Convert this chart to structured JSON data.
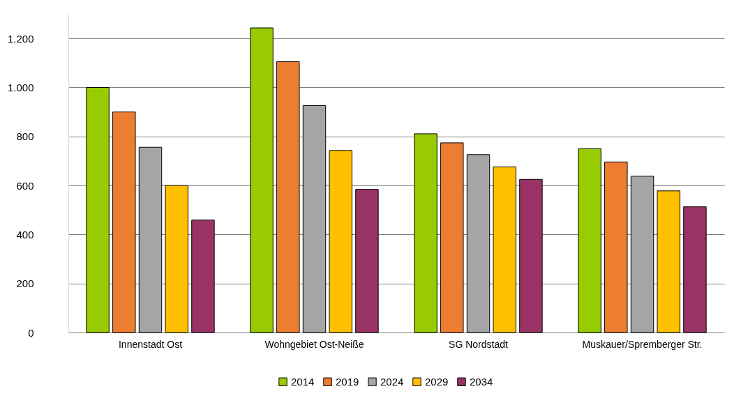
{
  "chart_data": {
    "type": "bar",
    "categories": [
      "Innenstadt Ost",
      "Wohngebiet Ost-Neiße",
      "SG Nordstadt",
      "Muskauer/Spremberger Str."
    ],
    "series": [
      {
        "name": "2014",
        "color": "#99cc00",
        "values": [
          1000,
          1243,
          811,
          750
        ]
      },
      {
        "name": "2019",
        "color": "#ed7d31",
        "values": [
          900,
          1105,
          774,
          696
        ]
      },
      {
        "name": "2024",
        "color": "#a5a5a5",
        "values": [
          756,
          926,
          726,
          638
        ]
      },
      {
        "name": "2029",
        "color": "#ffc000",
        "values": [
          600,
          743,
          676,
          578
        ]
      },
      {
        "name": "2034",
        "color": "#993366",
        "values": [
          459,
          584,
          625,
          513
        ]
      }
    ],
    "ylim": [
      0,
      1300
    ],
    "yticks": [
      0,
      200,
      400,
      600,
      800,
      {
        "value": 1000,
        "label": "1.000"
      },
      {
        "value": 1200,
        "label": "1.200"
      }
    ],
    "grid": "y",
    "legend": "bottom"
  }
}
